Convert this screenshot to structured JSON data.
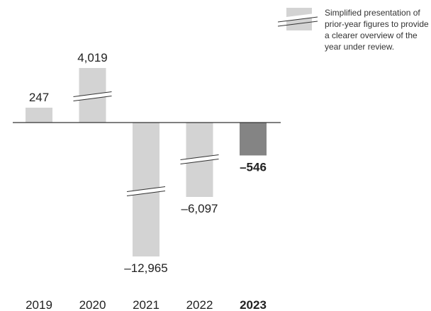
{
  "chart_data": {
    "type": "bar",
    "categories": [
      "2019",
      "2020",
      "2021",
      "2022",
      "2023"
    ],
    "values": [
      247,
      4019,
      -12965,
      -6097,
      -546
    ],
    "value_labels": [
      "247",
      "4,019",
      "–12,965",
      "–6,097",
      "–546"
    ],
    "highlight_category": "2023",
    "broken_bars": [
      "2020",
      "2021",
      "2022"
    ],
    "colors": {
      "bar": "#d3d3d3",
      "highlight_bar": "#848484",
      "break_line": "#333333",
      "axis": "#333333"
    },
    "legend": {
      "placement": "top-right",
      "text": "Simplified presentation of prior-year figures to provide a clearer overview of the year under review."
    }
  }
}
